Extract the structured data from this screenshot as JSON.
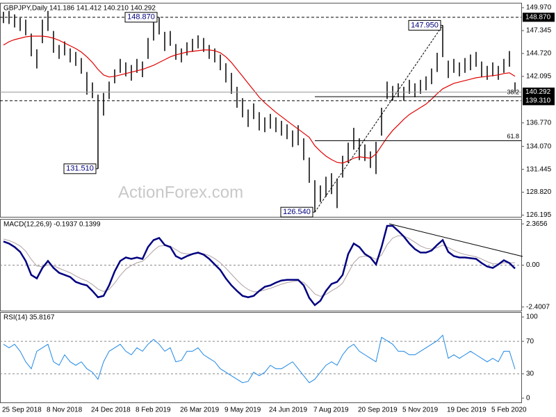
{
  "chart_data": [
    {
      "type": "ohlc",
      "title": "GBPJPY,Daily  141.186 141.412 140.210 140.292",
      "watermark": "ActionForex.com",
      "categories": [
        "25 Sep 2018",
        null,
        null,
        null,
        null,
        null,
        null,
        null,
        "8 Nov 2018",
        null,
        null,
        null,
        null,
        null,
        null,
        null,
        "24 Dec 2018",
        null,
        null,
        null,
        null,
        null,
        null,
        null,
        "8 Feb 2019",
        null,
        null,
        null,
        null,
        null,
        null,
        null,
        "26 Mar 2019",
        null,
        null,
        null,
        null,
        null,
        null,
        null,
        "9 May 2019",
        null,
        null,
        null,
        null,
        null,
        null,
        null,
        "24 Jun 2019",
        null,
        null,
        null,
        null,
        null,
        null,
        null,
        "7 Aug 2019",
        null,
        null,
        null,
        null,
        null,
        null,
        null,
        "20 Sep 2019",
        null,
        null,
        null,
        null,
        null,
        null,
        null,
        "5 Nov 2019",
        null,
        null,
        null,
        null,
        null,
        null,
        null,
        "19 Dec 2019",
        null,
        null,
        null,
        null,
        null,
        null,
        null,
        "5 Feb 2020",
        null,
        null,
        null,
        null
      ],
      "series": [
        {
          "color": "#000000",
          "high": [
            149.5,
            149.6,
            149.2,
            148.8,
            148.6,
            147.0,
            145.2,
            148.6,
            149.6,
            147.3,
            145.7,
            146.1,
            145.3,
            144.9,
            144.2,
            142.6,
            141.4,
            140.0,
            140.2,
            141.5,
            142.9,
            144.1,
            143.7,
            143.4,
            144.1,
            143.8,
            146.5,
            148.3,
            148.87,
            147.2,
            147.3,
            145.8,
            145.3,
            146.0,
            146.4,
            146.8,
            146.5,
            145.7,
            145.3,
            144.6,
            143.6,
            142.5,
            140.9,
            139.6,
            138.3,
            139.0,
            138.0,
            137.4,
            137.8,
            137.4,
            137.0,
            136.6,
            135.9,
            136.5,
            135.0,
            132.8,
            130.2,
            129.6,
            130.6,
            131.0,
            130.4,
            133.0,
            134.5,
            136.2,
            135.0,
            134.3,
            133.5,
            134.6,
            138.5,
            141.5,
            141.0,
            141.3,
            140.9,
            141.7,
            141.3,
            141.7,
            142.1,
            143.0,
            144.8,
            147.95,
            143.9,
            144.1,
            143.7,
            144.2,
            144.6,
            144.9,
            143.8,
            143.3,
            143.7,
            143.3,
            144.1,
            145.0,
            141.412
          ],
          "low": [
            148.2,
            148.1,
            147.7,
            147.3,
            146.8,
            144.4,
            143.0,
            145.9,
            147.3,
            144.8,
            144.1,
            144.5,
            143.7,
            143.3,
            142.4,
            140.0,
            139.6,
            131.51,
            137.6,
            139.5,
            141.3,
            142.5,
            142.1,
            141.6,
            142.5,
            142.0,
            144.1,
            146.2,
            146.9,
            145.0,
            145.6,
            144.0,
            143.7,
            144.5,
            144.9,
            145.3,
            144.9,
            144.1,
            143.7,
            142.8,
            141.4,
            140.1,
            138.5,
            137.4,
            136.3,
            137.2,
            135.9,
            135.7,
            136.1,
            135.7,
            135.3,
            134.9,
            134.0,
            134.2,
            132.5,
            129.9,
            126.54,
            127.7,
            128.3,
            128.6,
            127.0,
            130.5,
            132.2,
            133.7,
            132.5,
            132.4,
            131.6,
            130.9,
            135.3,
            139.5,
            139.3,
            139.7,
            139.3,
            140.1,
            139.7,
            140.1,
            140.5,
            141.2,
            142.6,
            144.3,
            141.9,
            142.5,
            142.1,
            142.5,
            142.8,
            143.2,
            142.0,
            141.7,
            142.1,
            141.7,
            142.5,
            143.2,
            140.21
          ]
        },
        {
          "color": "#e00000",
          "values": [
            145.68,
            146.07,
            146.31,
            146.47,
            146.63,
            146.71,
            146.71,
            146.71,
            146.63,
            146.47,
            146.23,
            145.92,
            145.6,
            145.28,
            144.88,
            144.33,
            143.69,
            142.89,
            142.26,
            142.02,
            142.1,
            142.26,
            142.42,
            142.58,
            142.74,
            142.89,
            143.13,
            143.37,
            143.69,
            144.01,
            144.33,
            144.56,
            144.72,
            144.88,
            144.96,
            145.04,
            145.12,
            145.12,
            145.04,
            144.8,
            144.33,
            143.69,
            142.89,
            142.1,
            141.3,
            140.51,
            139.71,
            139.08,
            138.52,
            137.97,
            137.49,
            137.01,
            136.53,
            136.06,
            135.58,
            135.1,
            134.15,
            133.51,
            132.96,
            132.56,
            132.24,
            132.16,
            132.4,
            132.72,
            132.88,
            132.8,
            132.72,
            133.2,
            134.15,
            135.1,
            135.9,
            136.53,
            137.17,
            137.73,
            138.12,
            138.52,
            138.92,
            139.48,
            140.11,
            140.67,
            140.99,
            141.3,
            141.46,
            141.62,
            141.78,
            141.94,
            142.02,
            142.1,
            142.18,
            142.26,
            142.42,
            142.5,
            142.1
          ]
        }
      ],
      "ylim": [
        126.0,
        150.45
      ],
      "yticks": [
        {
          "value": 149.97,
          "label": "149.970"
        },
        147.345,
        {
          "value": 144.72,
          "label": "144.720"
        },
        142.095,
        {
          "value": 136.77,
          "label": "136.770"
        },
        {
          "value": 134.07,
          "label": "134.070"
        },
        131.445,
        {
          "value": 128.82,
          "label": "128.820"
        },
        126.195
      ],
      "levels": [
        {
          "value": 148.87,
          "label": "148.870",
          "style": "dashed"
        },
        {
          "value": 140.292,
          "label": "140.292",
          "style": "solid"
        },
        {
          "value": 139.31,
          "label": "139.310",
          "style": "dashed"
        }
      ],
      "annotations": [
        {
          "value": 148.87,
          "label": "148.870"
        },
        {
          "value": 131.51,
          "label": "131.510"
        },
        {
          "value": 126.54,
          "label": "126.540"
        },
        {
          "value": 147.95,
          "label": "147.950"
        }
      ],
      "fib": {
        "high": 147.95,
        "low": 126.54,
        "levels": [
          38.2,
          61.8
        ]
      }
    },
    {
      "type": "line",
      "title": "MACD(12,26,9) -0.1937 0.1399",
      "series": [
        {
          "color": "#000080",
          "values": [
            1.36,
            1.24,
            1.04,
            0.76,
            0.24,
            -0.56,
            -0.76,
            -0.16,
            0.24,
            -0.16,
            -0.44,
            -0.56,
            -0.68,
            -0.96,
            -1.08,
            -1.16,
            -1.48,
            -1.84,
            -1.76,
            -1.16,
            -0.36,
            0.24,
            0.44,
            0.36,
            0.44,
            0.36,
            1.04,
            1.44,
            1.56,
            1.16,
            1.04,
            0.52,
            0.36,
            0.52,
            0.64,
            0.72,
            0.6,
            0.36,
            0.04,
            -0.28,
            -0.76,
            -1.16,
            -1.48,
            -1.76,
            -1.84,
            -1.76,
            -1.48,
            -1.24,
            -1.16,
            -1.0,
            -0.88,
            -0.84,
            -0.84,
            -0.84,
            -1.16,
            -1.88,
            -2.29,
            -2.04,
            -1.48,
            -1.08,
            -0.96,
            -0.56,
            0.64,
            1.24,
            1.04,
            0.64,
            0.44,
            0.04,
            1.04,
            2.25,
            2.25,
            1.96,
            1.64,
            1.24,
            0.92,
            0.72,
            0.72,
            0.84,
            1.16,
            1.44,
            0.76,
            0.52,
            0.44,
            0.44,
            0.4,
            0.36,
            0.12,
            -0.08,
            -0.16,
            0.04,
            0.28,
            0.12,
            -0.19
          ]
        },
        {
          "color": "#b0a0a0",
          "values": [
            1.5,
            1.41,
            1.28,
            1.1,
            0.8,
            0.33,
            -0.05,
            -0.09,
            0.02,
            -0.04,
            -0.18,
            -0.31,
            -0.44,
            -0.62,
            -0.78,
            -0.91,
            -1.11,
            -1.37,
            -1.51,
            -1.39,
            -1.03,
            -0.59,
            -0.23,
            -0.02,
            0.14,
            0.22,
            0.51,
            0.84,
            1.09,
            1.12,
            1.09,
            0.89,
            0.7,
            0.64,
            0.64,
            0.67,
            0.65,
            0.55,
            0.37,
            0.14,
            -0.17,
            -0.52,
            -0.86,
            -1.17,
            -1.4,
            -1.53,
            -1.51,
            -1.42,
            -1.33,
            -1.21,
            -1.09,
            -1.0,
            -0.94,
            -0.9,
            -0.99,
            -1.3,
            -1.65,
            -1.79,
            -1.68,
            -1.47,
            -1.29,
            -1.03,
            -0.45,
            0.14,
            0.46,
            0.52,
            0.49,
            0.33,
            0.58,
            1.17,
            1.55,
            1.69,
            1.67,
            1.52,
            1.31,
            1.1,
            0.97,
            0.92,
            1.0,
            1.15,
            1.01,
            0.84,
            0.7,
            0.61,
            0.54,
            0.48,
            0.35,
            0.2,
            0.08,
            0.07,
            0.14,
            0.13,
            0.14
          ]
        }
      ],
      "ylim": [
        -2.61,
        2.61
      ],
      "yticks": [
        2.3656,
        {
          "value": 0,
          "label": "0.00"
        },
        -2.4007
      ],
      "levels": [
        0
      ]
    },
    {
      "type": "line",
      "title": "RSI(14) 35.8167",
      "series": [
        {
          "color": "#1e88e5",
          "values": [
            66.4,
            62.1,
            66.4,
            57.8,
            44.8,
            36.2,
            57.8,
            62.1,
            66.4,
            44.8,
            40.5,
            53.4,
            44.8,
            40.5,
            44.8,
            36.2,
            31.9,
            23.3,
            44.8,
            57.8,
            62.1,
            66.4,
            57.8,
            53.4,
            62.1,
            57.8,
            66.4,
            72.4,
            66.4,
            57.8,
            62.1,
            44.8,
            46.6,
            57.8,
            57.8,
            62.1,
            53.4,
            49.1,
            44.8,
            36.2,
            31.9,
            27.6,
            23.3,
            19.0,
            20.7,
            31.9,
            27.6,
            31.9,
            40.5,
            36.2,
            36.2,
            40.5,
            44.8,
            36.2,
            27.6,
            19.0,
            23.3,
            31.9,
            40.5,
            44.8,
            40.5,
            53.4,
            62.1,
            66.4,
            57.8,
            53.4,
            49.1,
            44.8,
            75.0,
            70.7,
            66.4,
            57.8,
            57.8,
            53.4,
            53.4,
            57.8,
            62.1,
            66.4,
            70.7,
            77.6,
            49.1,
            53.4,
            49.1,
            53.4,
            57.8,
            53.4,
            49.1,
            44.8,
            49.1,
            44.8,
            57.8,
            57.8,
            35.8
          ]
        }
      ],
      "ylim": [
        -5.2,
        105.2
      ],
      "yticks": [
        100,
        70,
        30,
        0
      ],
      "levels": [
        70,
        30
      ]
    }
  ]
}
